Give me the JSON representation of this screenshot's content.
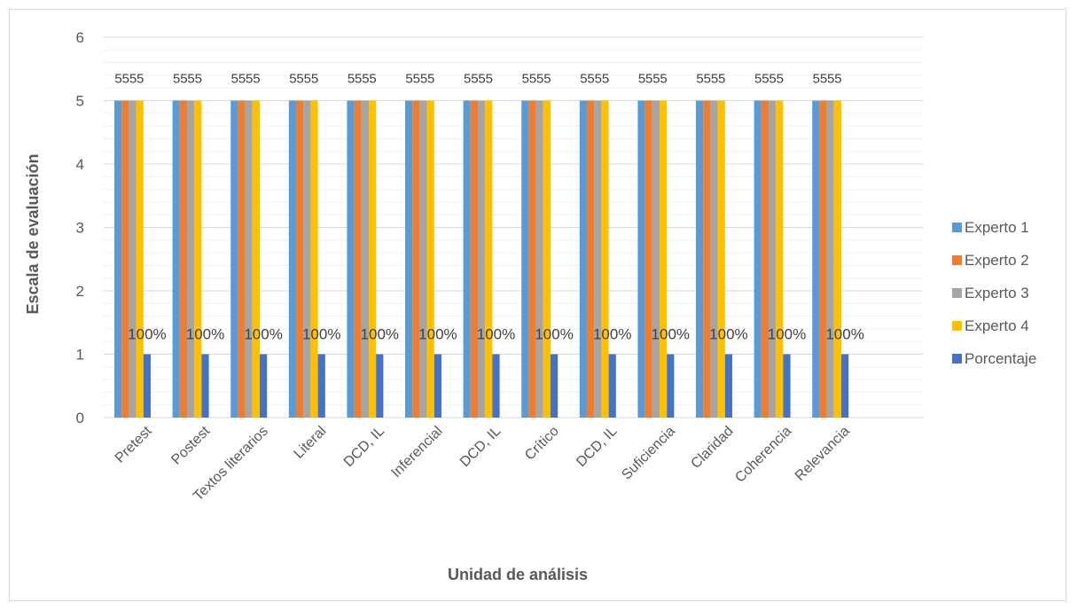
{
  "chart_data": {
    "type": "bar",
    "title": "",
    "xlabel": "Unidad de análisis",
    "ylabel": "Escala de evaluación",
    "ylim": [
      0,
      6
    ],
    "yticks": [
      0,
      1,
      2,
      3,
      4,
      5,
      6
    ],
    "grid": true,
    "legend_position": "right",
    "categories": [
      "Pretest",
      "Postest",
      "Textos literarios",
      "Literal",
      "DCD, IL",
      "Inferencial",
      "DCD, IL",
      "Crítico",
      "DCD, IL",
      "Suficiencia",
      "Claridad",
      "Coherencia",
      "Relevancia"
    ],
    "series": [
      {
        "name": "Experto 1",
        "color": "#5b9bd5",
        "values": [
          5,
          5,
          5,
          5,
          5,
          5,
          5,
          5,
          5,
          5,
          5,
          5,
          5
        ],
        "data_labels": [
          "5",
          "5",
          "5",
          "5",
          "5",
          "5",
          "5",
          "5",
          "5",
          "5",
          "5",
          "5",
          "5"
        ]
      },
      {
        "name": "Experto 2",
        "color": "#ed7d31",
        "values": [
          5,
          5,
          5,
          5,
          5,
          5,
          5,
          5,
          5,
          5,
          5,
          5,
          5
        ],
        "data_labels": [
          "5",
          "5",
          "5",
          "5",
          "5",
          "5",
          "5",
          "5",
          "5",
          "5",
          "5",
          "5",
          "5"
        ]
      },
      {
        "name": "Experto 3",
        "color": "#a5a5a5",
        "values": [
          5,
          5,
          5,
          5,
          5,
          5,
          5,
          5,
          5,
          5,
          5,
          5,
          5
        ],
        "data_labels": [
          "5",
          "5",
          "5",
          "5",
          "5",
          "5",
          "5",
          "5",
          "5",
          "5",
          "5",
          "5",
          "5"
        ]
      },
      {
        "name": "Experto 4",
        "color": "#ffc000",
        "values": [
          5,
          5,
          5,
          5,
          5,
          5,
          5,
          5,
          5,
          5,
          5,
          5,
          5
        ],
        "data_labels": [
          "5",
          "5",
          "5",
          "5",
          "5",
          "5",
          "5",
          "5",
          "5",
          "5",
          "5",
          "5",
          "5"
        ]
      },
      {
        "name": "Porcentaje",
        "color": "#4472c4",
        "values": [
          1,
          1,
          1,
          1,
          1,
          1,
          1,
          1,
          1,
          1,
          1,
          1,
          1
        ],
        "data_labels": [
          "100%",
          "100%",
          "100%",
          "100%",
          "100%",
          "100%",
          "100%",
          "100%",
          "100%",
          "100%",
          "100%",
          "100%",
          "100%"
        ]
      }
    ]
  }
}
